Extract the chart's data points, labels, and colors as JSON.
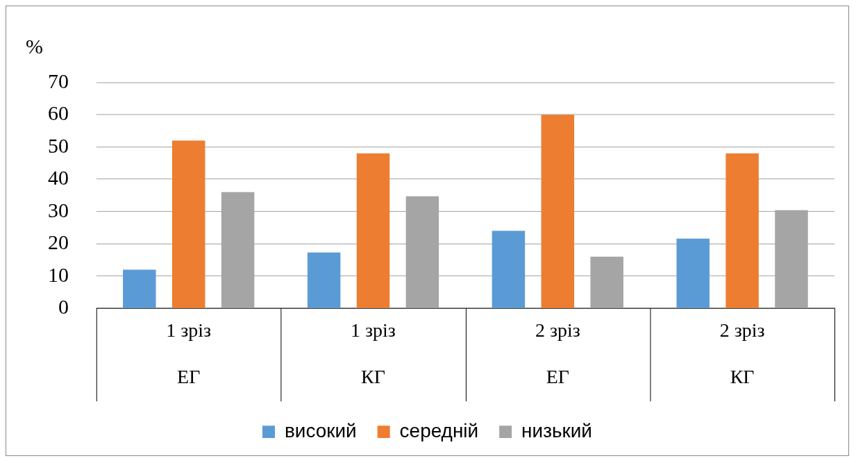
{
  "chart_data": {
    "type": "bar",
    "ylabel": "%",
    "categories": [
      "1 зріз\nЕГ",
      "1 зріз\nКГ",
      "2 зріз\nЕГ",
      "2 зріз\nКГ"
    ],
    "series": [
      {
        "name": "високий",
        "color": "#5b9bd5",
        "values": [
          12,
          17.3,
          24,
          21.6
        ]
      },
      {
        "name": "середній",
        "color": "#ed7d31",
        "values": [
          52,
          48,
          60,
          48
        ]
      },
      {
        "name": "низький",
        "color": "#a5a5a5",
        "values": [
          36,
          34.7,
          16,
          30.4
        ]
      }
    ],
    "ylim": [
      0,
      70
    ],
    "yticks": [
      0,
      10,
      20,
      30,
      40,
      50,
      60,
      70
    ],
    "grid": "y",
    "legend": "bottom"
  }
}
